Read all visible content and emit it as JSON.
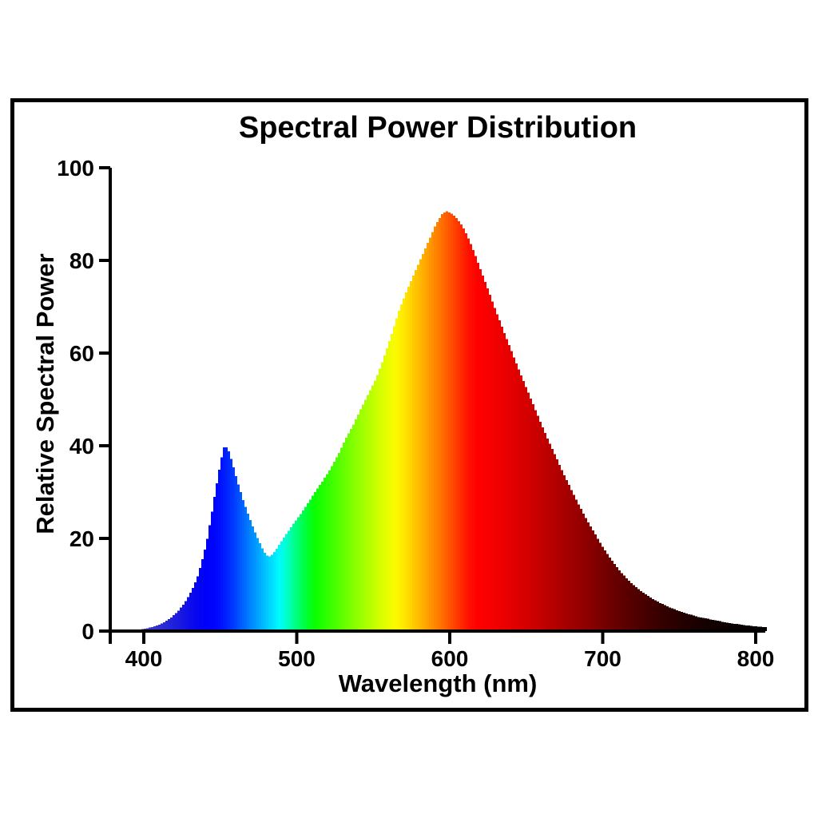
{
  "page": {
    "background": "#ffffff",
    "frame_border_color": "#000000"
  },
  "chart_data": {
    "type": "area",
    "title": "Spectral Power Distribution",
    "xlabel": "Wavelength (nm)",
    "ylabel": "Relative Spectral Power",
    "xlim": [
      378,
      806
    ],
    "ylim": [
      0,
      100
    ],
    "x_ticks": [
      400,
      500,
      600,
      700,
      800
    ],
    "y_ticks": [
      0,
      20,
      40,
      60,
      80,
      100
    ],
    "grid": false,
    "legend": null,
    "axis_color": "#000000",
    "description": "White LED spectral power distribution: narrow blue pump peak (~40 at 453 nm), trough (~16 at 481 nm), broad phosphor peak (~90 at 597 nm), fill colored by visible-light wavelength",
    "points": [
      [
        380,
        0
      ],
      [
        388,
        0.1
      ],
      [
        396,
        0.3
      ],
      [
        402,
        0.6
      ],
      [
        408,
        1.1
      ],
      [
        413,
        1.8
      ],
      [
        418,
        2.9
      ],
      [
        423,
        4.5
      ],
      [
        427,
        6.2
      ],
      [
        431,
        8.5
      ],
      [
        435,
        11.5
      ],
      [
        438,
        15
      ],
      [
        441,
        19
      ],
      [
        444,
        24.5
      ],
      [
        447,
        30.5
      ],
      [
        450,
        36
      ],
      [
        452,
        39.3
      ],
      [
        453,
        40
      ],
      [
        455,
        39.4
      ],
      [
        457,
        37.4
      ],
      [
        459,
        35
      ],
      [
        462,
        31.5
      ],
      [
        465,
        28.3
      ],
      [
        468,
        25.5
      ],
      [
        471,
        22.8
      ],
      [
        474,
        20.4
      ],
      [
        477,
        18.2
      ],
      [
        480,
        16.4
      ],
      [
        482,
        16.1
      ],
      [
        484,
        16.5
      ],
      [
        487,
        17.8
      ],
      [
        490,
        19.4
      ],
      [
        494,
        21.3
      ],
      [
        498,
        23.2
      ],
      [
        502,
        25
      ],
      [
        507,
        27.4
      ],
      [
        512,
        30
      ],
      [
        517,
        32.4
      ],
      [
        522,
        35
      ],
      [
        527,
        38
      ],
      [
        532,
        41.5
      ],
      [
        537,
        44.5
      ],
      [
        542,
        48
      ],
      [
        547,
        51.3
      ],
      [
        552,
        54.6
      ],
      [
        557,
        59
      ],
      [
        562,
        64
      ],
      [
        567,
        69.3
      ],
      [
        572,
        73.5
      ],
      [
        577,
        77.3
      ],
      [
        582,
        81
      ],
      [
        587,
        84.8
      ],
      [
        591,
        87.8
      ],
      [
        595,
        90
      ],
      [
        598,
        90.6
      ],
      [
        601,
        90.2
      ],
      [
        604,
        89.3
      ],
      [
        608,
        87.6
      ],
      [
        612,
        85
      ],
      [
        616,
        81.8
      ],
      [
        620,
        78.2
      ],
      [
        625,
        73.8
      ],
      [
        630,
        69.3
      ],
      [
        635,
        65
      ],
      [
        640,
        60.8
      ],
      [
        645,
        56.6
      ],
      [
        650,
        52.6
      ],
      [
        655,
        48.6
      ],
      [
        660,
        44.6
      ],
      [
        665,
        40.8
      ],
      [
        670,
        37.2
      ],
      [
        675,
        33.6
      ],
      [
        680,
        30.2
      ],
      [
        685,
        26.9
      ],
      [
        690,
        23.8
      ],
      [
        695,
        21
      ],
      [
        700,
        18.2
      ],
      [
        705,
        15.7
      ],
      [
        710,
        13.5
      ],
      [
        715,
        11.6
      ],
      [
        720,
        10
      ],
      [
        726,
        8.4
      ],
      [
        732,
        7.1
      ],
      [
        738,
        6
      ],
      [
        744,
        5.1
      ],
      [
        750,
        4.3
      ],
      [
        756,
        3.7
      ],
      [
        762,
        3.1
      ],
      [
        768,
        2.7
      ],
      [
        774,
        2.3
      ],
      [
        780,
        1.9
      ],
      [
        786,
        1.6
      ],
      [
        792,
        1.3
      ],
      [
        798,
        1.1
      ],
      [
        804,
        0.9
      ]
    ],
    "color_stops": [
      [
        380,
        "#6A6AC8"
      ],
      [
        395,
        "#4848C8"
      ],
      [
        410,
        "#3030D2"
      ],
      [
        422,
        "#1C1CDE"
      ],
      [
        433,
        "#0808EE"
      ],
      [
        441,
        "#0000FA"
      ],
      [
        448,
        "#0008FF"
      ],
      [
        455,
        "#0026FF"
      ],
      [
        462,
        "#0050FF"
      ],
      [
        469,
        "#0080FF"
      ],
      [
        476,
        "#00ACFF"
      ],
      [
        482,
        "#00D2FF"
      ],
      [
        488,
        "#00F8FF"
      ],
      [
        492,
        "#00FFDC"
      ],
      [
        497,
        "#00FF9E"
      ],
      [
        502,
        "#00FF64"
      ],
      [
        507,
        "#00FF2E"
      ],
      [
        512,
        "#0AFF00"
      ],
      [
        520,
        "#30FF00"
      ],
      [
        529,
        "#5CFF00"
      ],
      [
        538,
        "#88FF00"
      ],
      [
        547,
        "#B2FF00"
      ],
      [
        556,
        "#DCFF00"
      ],
      [
        564,
        "#FAFC00"
      ],
      [
        570,
        "#FFE800"
      ],
      [
        577,
        "#FFC800"
      ],
      [
        584,
        "#FFA800"
      ],
      [
        591,
        "#FF8400"
      ],
      [
        598,
        "#FF5E00"
      ],
      [
        605,
        "#FF3800"
      ],
      [
        612,
        "#FF1200"
      ],
      [
        618,
        "#FF0000"
      ],
      [
        632,
        "#F00000"
      ],
      [
        646,
        "#DB0000"
      ],
      [
        660,
        "#C30000"
      ],
      [
        674,
        "#AA0000"
      ],
      [
        688,
        "#900000"
      ],
      [
        702,
        "#740000"
      ],
      [
        716,
        "#5A0000"
      ],
      [
        730,
        "#420000"
      ],
      [
        744,
        "#2E0000"
      ],
      [
        758,
        "#1E0000"
      ],
      [
        772,
        "#120000"
      ],
      [
        786,
        "#090000"
      ],
      [
        806,
        "#040000"
      ]
    ]
  }
}
